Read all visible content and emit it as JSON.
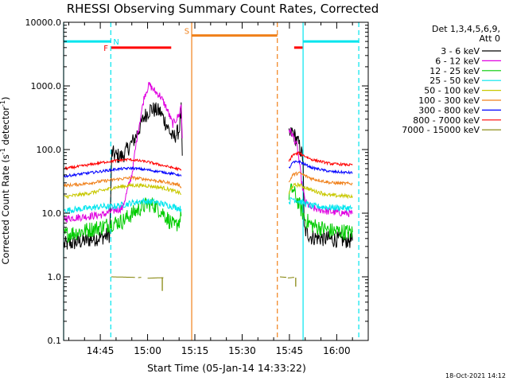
{
  "colors": {
    "background": "#ffffff",
    "axes": "#000000",
    "night_marker": "#00e5ee",
    "flare_marker": "#ff0000",
    "saa_marker": "#f0801a"
  },
  "chart_data": {
    "type": "line",
    "title": "RHESSI Observing Summary Count Rates, Corrected",
    "xlabel": "Start Time (05-Jan-14 14:33:22)",
    "ylabel": "Corrected Count Rate (s⁻¹ detector⁻¹)",
    "ylabel_main": "Corrected Count Rate (s",
    "ylabel_mid": " detector",
    "ylabel_end": ")",
    "ylabel_sup1": "-1",
    "ylabel_sup2": "-1",
    "y_scale": "log",
    "ylim": [
      0.1,
      10000
    ],
    "xlim": [
      "14:33:22",
      "16:10:00"
    ],
    "x_ticks": [
      "14:45",
      "15:00",
      "15:15",
      "15:30",
      "15:45",
      "16:00"
    ],
    "y_ticks": [
      {
        "value": 0.1,
        "label": "0.1"
      },
      {
        "value": 1,
        "label": "1.0"
      },
      {
        "value": 10,
        "label": "10.0"
      },
      {
        "value": 100,
        "label": "100.0"
      },
      {
        "value": 1000,
        "label": "1000.0"
      },
      {
        "value": 10000,
        "label": "10000.0"
      }
    ],
    "legend_header": [
      "Det 1,3,4,5,6,9,",
      "Att 0"
    ],
    "legend_position": "right",
    "footer_date": "18-Oct-2021 14:12",
    "vertical_markers": [
      {
        "time": "14:33:22",
        "style": "solid",
        "color": "night"
      },
      {
        "time": "14:48:20",
        "style": "dashed",
        "color": "night"
      },
      {
        "time": "15:14:00",
        "style": "solid",
        "color": "saa"
      },
      {
        "time": "15:41:10",
        "style": "dashed",
        "color": "saa"
      },
      {
        "time": "15:49:20",
        "style": "solid",
        "color": "night"
      },
      {
        "time": "16:07:00",
        "style": "dashed",
        "color": "night"
      }
    ],
    "flag_bars": [
      {
        "label": "N",
        "color": "night",
        "start": "14:33:22",
        "end": "14:48:20",
        "level": 5000
      },
      {
        "label": "",
        "color": "night",
        "start": "15:49:20",
        "end": "16:07:00",
        "level": 5000
      },
      {
        "label": "F",
        "color": "flare",
        "start": "14:48:30",
        "end": "15:07:30",
        "level": 4000
      },
      {
        "label": "",
        "color": "flare",
        "start": "15:46:30",
        "end": "15:49:10",
        "level": 4000
      },
      {
        "label": "S",
        "color": "saa",
        "start": "15:14:00",
        "end": "15:41:10",
        "level": 6200
      }
    ],
    "series": [
      {
        "name": "3 - 6 keV",
        "color": "#000000",
        "noise": 0.13,
        "segments": [
          [
            [
              "14:33:30",
              3.2
            ],
            [
              "14:40:00",
              3.7
            ],
            [
              "14:46:00",
              4.3
            ],
            [
              "14:48:00",
              4.6
            ],
            [
              "14:48:40",
              90
            ],
            [
              "14:50:00",
              80
            ],
            [
              "14:52:00",
              78
            ],
            [
              "14:56:00",
              150
            ],
            [
              "14:59:00",
              330
            ],
            [
              "15:01:00",
              440
            ],
            [
              "15:04:00",
              390
            ],
            [
              "15:06:00",
              250
            ],
            [
              "15:08:00",
              150
            ],
            [
              "15:10:00",
              200
            ],
            [
              "15:10:40",
              420
            ],
            [
              "15:11:00",
              80
            ]
          ],
          [
            [
              "15:44:50",
              160
            ],
            [
              "15:46:00",
              190
            ],
            [
              "15:48:00",
              120
            ],
            [
              "15:49:20",
              72
            ],
            [
              "15:49:40",
              5.5
            ],
            [
              "15:52:00",
              4.2
            ],
            [
              "15:58:00",
              3.9
            ],
            [
              "16:05:00",
              3.7
            ]
          ]
        ]
      },
      {
        "name": "6 - 12 keV",
        "color": "#e000e0",
        "noise": 0.06,
        "segments": [
          [
            [
              "14:33:30",
              8.2
            ],
            [
              "14:40:00",
              8.8
            ],
            [
              "14:46:00",
              9.5
            ],
            [
              "14:48:00",
              10.5
            ],
            [
              "14:52:00",
              12.0
            ],
            [
              "14:55:00",
              40
            ],
            [
              "14:57:00",
              200
            ],
            [
              "14:59:00",
              700
            ],
            [
              "15:00:30",
              1050
            ],
            [
              "15:02:00",
              850
            ],
            [
              "15:04:00",
              700
            ],
            [
              "15:06:00",
              450
            ],
            [
              "15:08:00",
              250
            ],
            [
              "15:10:00",
              350
            ],
            [
              "15:10:40",
              520
            ],
            [
              "15:11:00",
              150
            ]
          ],
          [
            [
              "15:44:50",
              210
            ],
            [
              "15:46:00",
              170
            ],
            [
              "15:47:30",
              110
            ],
            [
              "15:49:00",
              28
            ],
            [
              "15:50:00",
              15
            ],
            [
              "15:52:00",
              12
            ],
            [
              "15:58:00",
              10.5
            ],
            [
              "16:05:00",
              9.8
            ]
          ]
        ]
      },
      {
        "name": "12 - 25 keV",
        "color": "#00cc00",
        "noise": 0.13,
        "segments": [
          [
            [
              "14:33:30",
              4.6
            ],
            [
              "14:40:00",
              5.3
            ],
            [
              "14:46:00",
              6.2
            ],
            [
              "14:48:00",
              6.8
            ],
            [
              "14:52:00",
              7.5
            ],
            [
              "14:56:00",
              10.5
            ],
            [
              "15:00:00",
              14
            ],
            [
              "15:02:00",
              13.5
            ],
            [
              "15:05:00",
              10
            ],
            [
              "15:07:00",
              7.5
            ],
            [
              "15:08:30",
              6
            ],
            [
              "15:10:00",
              7.5
            ],
            [
              "15:10:40",
              9
            ]
          ],
          [
            [
              "15:44:50",
              20
            ],
            [
              "15:46:00",
              24
            ],
            [
              "15:48:00",
              14
            ],
            [
              "15:50:00",
              8
            ],
            [
              "15:52:00",
              6.5
            ],
            [
              "15:58:00",
              5.3
            ],
            [
              "16:05:00",
              5
            ]
          ]
        ]
      },
      {
        "name": "25 - 50 keV",
        "color": "#00e5ee",
        "noise": 0.05,
        "segments": [
          [
            [
              "14:33:30",
              11
            ],
            [
              "14:40:00",
              11.8
            ],
            [
              "14:46:00",
              12.8
            ],
            [
              "14:48:00",
              12.5
            ],
            [
              "14:52:00",
              13.5
            ],
            [
              "14:58:00",
              15.5
            ],
            [
              "15:02:00",
              15
            ],
            [
              "15:06:00",
              13.5
            ],
            [
              "15:10:00",
              12
            ],
            [
              "15:10:40",
              11.5
            ]
          ],
          [
            [
              "15:44:50",
              15
            ],
            [
              "15:46:00",
              17
            ],
            [
              "15:48:00",
              15.5
            ],
            [
              "15:52:00",
              13
            ],
            [
              "15:58:00",
              12.3
            ],
            [
              "16:05:00",
              12
            ]
          ]
        ]
      },
      {
        "name": "50 - 100 keV",
        "color": "#c8c800",
        "noise": 0.03,
        "segments": [
          [
            [
              "14:33:30",
              18
            ],
            [
              "14:40:00",
              20
            ],
            [
              "14:46:00",
              23
            ],
            [
              "14:50:00",
              25.5
            ],
            [
              "14:55:00",
              27.5
            ],
            [
              "15:00:00",
              27
            ],
            [
              "15:05:00",
              25
            ],
            [
              "15:10:00",
              21
            ],
            [
              "15:10:40",
              20
            ]
          ],
          [
            [
              "15:44:50",
              20
            ],
            [
              "15:46:00",
              27
            ],
            [
              "15:48:00",
              28
            ],
            [
              "15:52:00",
              23
            ],
            [
              "15:58:00",
              19
            ],
            [
              "16:05:00",
              18.5
            ]
          ]
        ]
      },
      {
        "name": "100 - 300 keV",
        "color": "#f0801a",
        "noise": 0.025,
        "segments": [
          [
            [
              "14:33:30",
              27
            ],
            [
              "14:40:00",
              29
            ],
            [
              "14:46:00",
              32
            ],
            [
              "14:50:00",
              34
            ],
            [
              "14:55:00",
              36
            ],
            [
              "15:00:00",
              34
            ],
            [
              "15:05:00",
              31
            ],
            [
              "15:10:00",
              28
            ],
            [
              "15:10:40",
              26
            ]
          ],
          [
            [
              "15:44:50",
              30
            ],
            [
              "15:46:00",
              40
            ],
            [
              "15:48:00",
              43
            ],
            [
              "15:52:00",
              35
            ],
            [
              "15:58:00",
              30
            ],
            [
              "16:05:00",
              29
            ]
          ]
        ]
      },
      {
        "name": "300 - 800 keV",
        "color": "#0000ff",
        "noise": 0.02,
        "segments": [
          [
            [
              "14:33:30",
              38
            ],
            [
              "14:40:00",
              42
            ],
            [
              "14:46:00",
              46
            ],
            [
              "14:50:00",
              49
            ],
            [
              "14:55:00",
              51
            ],
            [
              "15:00:00",
              48
            ],
            [
              "15:05:00",
              44
            ],
            [
              "15:10:00",
              40
            ],
            [
              "15:10:40",
              38
            ]
          ],
          [
            [
              "15:44:50",
              50
            ],
            [
              "15:46:00",
              62
            ],
            [
              "15:48:00",
              65
            ],
            [
              "15:52:00",
              52
            ],
            [
              "15:58:00",
              45
            ],
            [
              "16:05:00",
              43
            ]
          ]
        ]
      },
      {
        "name": "800 - 7000 keV",
        "color": "#ff0000",
        "noise": 0.02,
        "segments": [
          [
            [
              "14:33:30",
              50
            ],
            [
              "14:40:00",
              56
            ],
            [
              "14:46:00",
              63
            ],
            [
              "14:50:00",
              67
            ],
            [
              "14:54:00",
              70
            ],
            [
              "15:00:00",
              64
            ],
            [
              "15:05:00",
              56
            ],
            [
              "15:10:00",
              49
            ],
            [
              "15:10:40",
              47
            ]
          ],
          [
            [
              "15:44:50",
              65
            ],
            [
              "15:46:00",
              82
            ],
            [
              "15:48:00",
              88
            ],
            [
              "15:52:00",
              70
            ],
            [
              "15:58:00",
              60
            ],
            [
              "16:05:00",
              57
            ]
          ]
        ]
      },
      {
        "name": "7000 - 15000 keV",
        "color": "#808000",
        "noise": 0.0,
        "segments": [
          [
            [
              "14:48:30",
              1.0
            ],
            [
              "14:56:00",
              0.98
            ]
          ],
          [
            [
              "14:57:00",
              0.97
            ],
            [
              "14:58:00",
              0.98
            ]
          ],
          [
            [
              "15:00:00",
              0.95
            ],
            [
              "15:05:00",
              0.97
            ]
          ],
          [
            [
              "15:42:00",
              1.0
            ],
            [
              "15:44:00",
              0.98
            ]
          ],
          [
            [
              "15:44:30",
              0.96
            ],
            [
              "15:46:30",
              0.98
            ]
          ]
        ],
        "spikes": [
          [
            "15:04:40",
            0.6
          ],
          [
            "15:47:00",
            0.7
          ]
        ]
      }
    ]
  }
}
